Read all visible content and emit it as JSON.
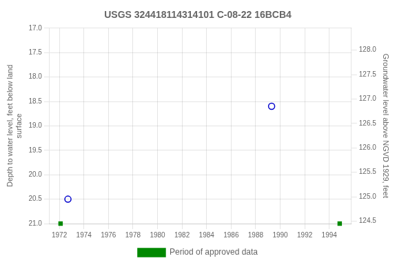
{
  "chart_data": {
    "type": "scatter",
    "title": "USGS 324418114314101 C-08-22 16BCB4",
    "y_label": "Depth to water level, feet below land\nsurface",
    "y2_label": "Groundwater level above NGVD 1929, feet",
    "series": [
      {
        "color": "#0000CC",
        "marker": "open_circle",
        "x": [
          1972.7,
          1989.3
        ],
        "values": [
          20.5,
          18.6
        ]
      },
      {
        "name": "Period of approved data",
        "color": "#008800",
        "marker": "square",
        "x": [
          1972.1,
          1994.85
        ],
        "values": [
          21.0,
          21.0
        ]
      }
    ],
    "xlim": [
      1971.2,
      1995.8
    ],
    "xticks": [
      1972,
      1974,
      1976,
      1978,
      1980,
      1982,
      1984,
      1986,
      1988,
      1990,
      1992,
      1994
    ],
    "ylim": [
      21.0,
      17.0
    ],
    "yticks": [
      {
        "value": 17,
        "label": "17.0"
      },
      17.5,
      {
        "value": 18,
        "label": "18.0"
      },
      18.5,
      {
        "value": 19,
        "label": "19.0"
      },
      19.5,
      {
        "value": 20,
        "label": "20.0"
      },
      20.5,
      {
        "value": 21,
        "label": "21.0"
      }
    ],
    "y2lim": [
      124.45,
      128.45
    ],
    "y2ticks": [
      124.5,
      {
        "value": 125,
        "label": "125.0"
      },
      125.5,
      {
        "value": 126,
        "label": "126.0"
      },
      126.5,
      {
        "value": 127,
        "label": "127.0"
      },
      127.5,
      {
        "value": 128,
        "label": "128.0"
      }
    ],
    "grid": true,
    "legend": "bottom"
  }
}
